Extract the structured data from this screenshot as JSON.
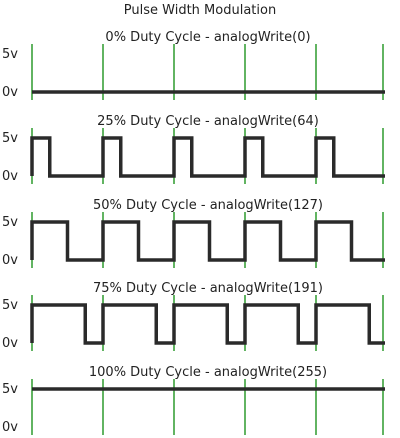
{
  "title": "Pulse Width Modulation",
  "colors": {
    "grid": "#2e9a2e",
    "wave": "#2a2a2a",
    "text": "#222222"
  },
  "labels": {
    "high": "5v",
    "low": "0v"
  },
  "panels": [
    {
      "title": "0% Duty Cycle - analogWrite(0)",
      "duty": 0
    },
    {
      "title": "25% Duty Cycle - analogWrite(64)",
      "duty": 0.25
    },
    {
      "title": "50% Duty Cycle - analogWrite(127)",
      "duty": 0.5
    },
    {
      "title": "75% Duty Cycle - analogWrite(191)",
      "duty": 0.75
    },
    {
      "title": "100% Duty Cycle - analogWrite(255)",
      "duty": 1
    }
  ]
}
